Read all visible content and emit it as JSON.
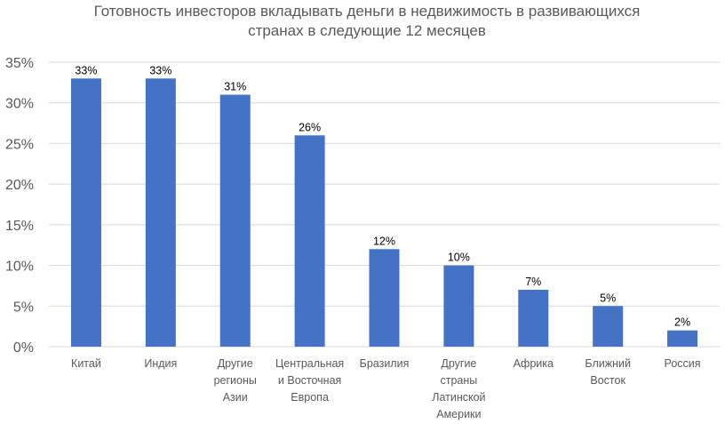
{
  "chart_data": {
    "type": "bar",
    "title_lines": [
      "Готовность инвесторов вкладывать деньги в недвижимость в развивающихся",
      "странах в следующие 12 месяцев"
    ],
    "categories": [
      [
        "Китай"
      ],
      [
        "Индия"
      ],
      [
        "Другие",
        "регионы",
        "Азии"
      ],
      [
        "Центральная",
        "и Восточная",
        "Европа"
      ],
      [
        "Бразилия"
      ],
      [
        "Другие",
        "страны",
        "Латинской",
        "Америки"
      ],
      [
        "Африка"
      ],
      [
        "Ближний",
        "Восток"
      ],
      [
        "Россия"
      ]
    ],
    "values": [
      33,
      33,
      31,
      26,
      12,
      10,
      7,
      5,
      2
    ],
    "data_labels": [
      "33%",
      "33%",
      "31%",
      "26%",
      "12%",
      "10%",
      "7%",
      "5%",
      "2%"
    ],
    "y_ticks": [
      "0%",
      "5%",
      "10%",
      "15%",
      "20%",
      "25%",
      "30%",
      "35%"
    ],
    "ylim": [
      0,
      35
    ],
    "grid": true,
    "legend": "none",
    "bar_color": "#4472C4",
    "grid_color": "#D9D9D9"
  }
}
